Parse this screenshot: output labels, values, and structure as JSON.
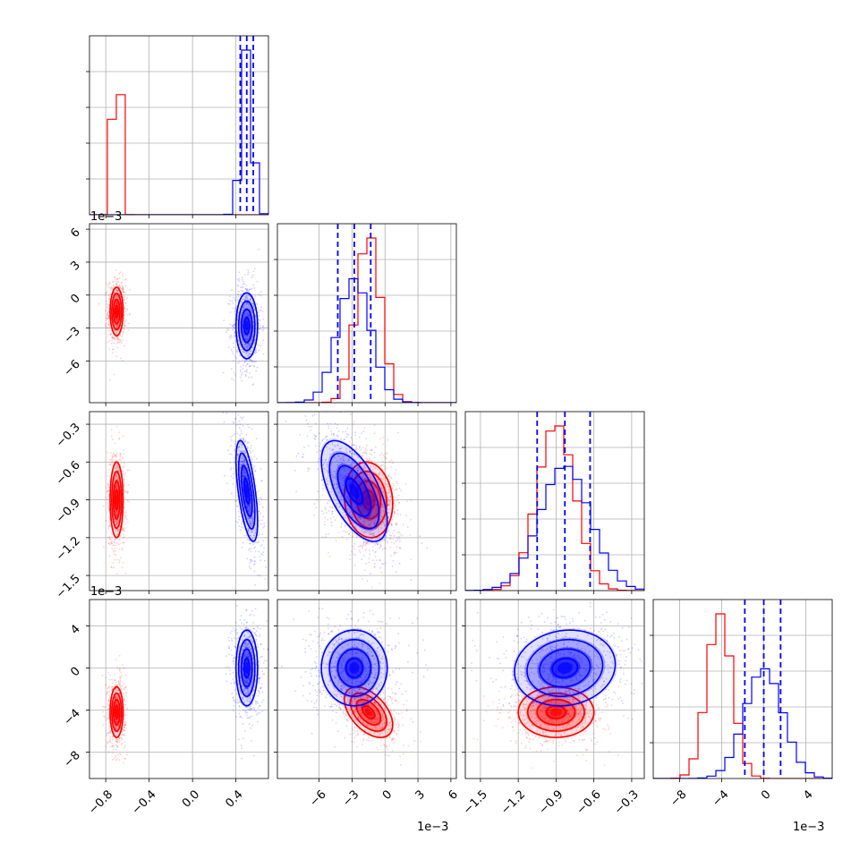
{
  "chart_data": {
    "type": "corner",
    "description_free": true,
    "parameters": 4,
    "colors": {
      "series_a": "#ff0000",
      "series_b": "#0000ff"
    },
    "grid": true,
    "quantile_lines": "dashed",
    "offset_text": {
      "row1": "1e−3",
      "row3": "1e−3",
      "col1": "1e−3",
      "col3": "1e−3"
    },
    "axes": [
      {
        "range": [
          -0.95,
          0.7
        ],
        "ticks": [
          -0.8,
          -0.4,
          0.0,
          0.4
        ],
        "tick_labels": [
          "−0.8",
          "−0.4",
          "0.0",
          "0.4"
        ],
        "offset": ""
      },
      {
        "range": [
          -9.8,
          6.5
        ],
        "ticks": [
          -6,
          -3,
          0,
          3,
          6
        ],
        "tick_labels": [
          "−6",
          "−3",
          "0",
          "3",
          "6"
        ],
        "offset": "1e−3"
      },
      {
        "range": [
          -1.62,
          -0.2
        ],
        "ticks": [
          -1.5,
          -1.2,
          -0.9,
          -0.6,
          -0.3
        ],
        "tick_labels": [
          "−1.5",
          "−1.2",
          "−0.9",
          "−0.6",
          "−0.3"
        ],
        "offset": ""
      },
      {
        "range": [
          -10.5,
          6.5
        ],
        "ticks": [
          -8,
          -4,
          0,
          4
        ],
        "tick_labels": [
          "−8",
          "−4",
          "0",
          "4"
        ],
        "offset": "1e−3"
      }
    ],
    "series": [
      {
        "color": "#ff0000",
        "means": [
          -0.7,
          -1.5,
          -0.9,
          -4.2
        ],
        "sigmas": [
          0.03,
          1.1,
          0.15,
          1.2
        ],
        "correlations": {
          "0-1": 0.0,
          "0-2": 0.0,
          "0-3": 0.0,
          "1-2": -0.1,
          "1-3": -0.5,
          "2-3": 0.0
        },
        "quantiles": []
      },
      {
        "color": "#0000ff",
        "means": [
          0.5,
          -2.8,
          -0.83,
          0.0
        ],
        "sigmas": [
          0.05,
          1.5,
          0.2,
          1.8
        ],
        "correlations": {
          "0-1": 0.0,
          "0-2": -0.6,
          "0-3": 0.0,
          "1-2": -0.6,
          "1-3": 0.0,
          "2-3": 0.1
        },
        "quantiles": [
          [
            0.44,
            0.5,
            0.56
          ],
          [
            -4.3,
            -2.8,
            -1.3
          ],
          [
            -1.05,
            -0.83,
            -0.63
          ],
          [
            -1.8,
            0.0,
            1.6
          ]
        ]
      }
    ]
  }
}
